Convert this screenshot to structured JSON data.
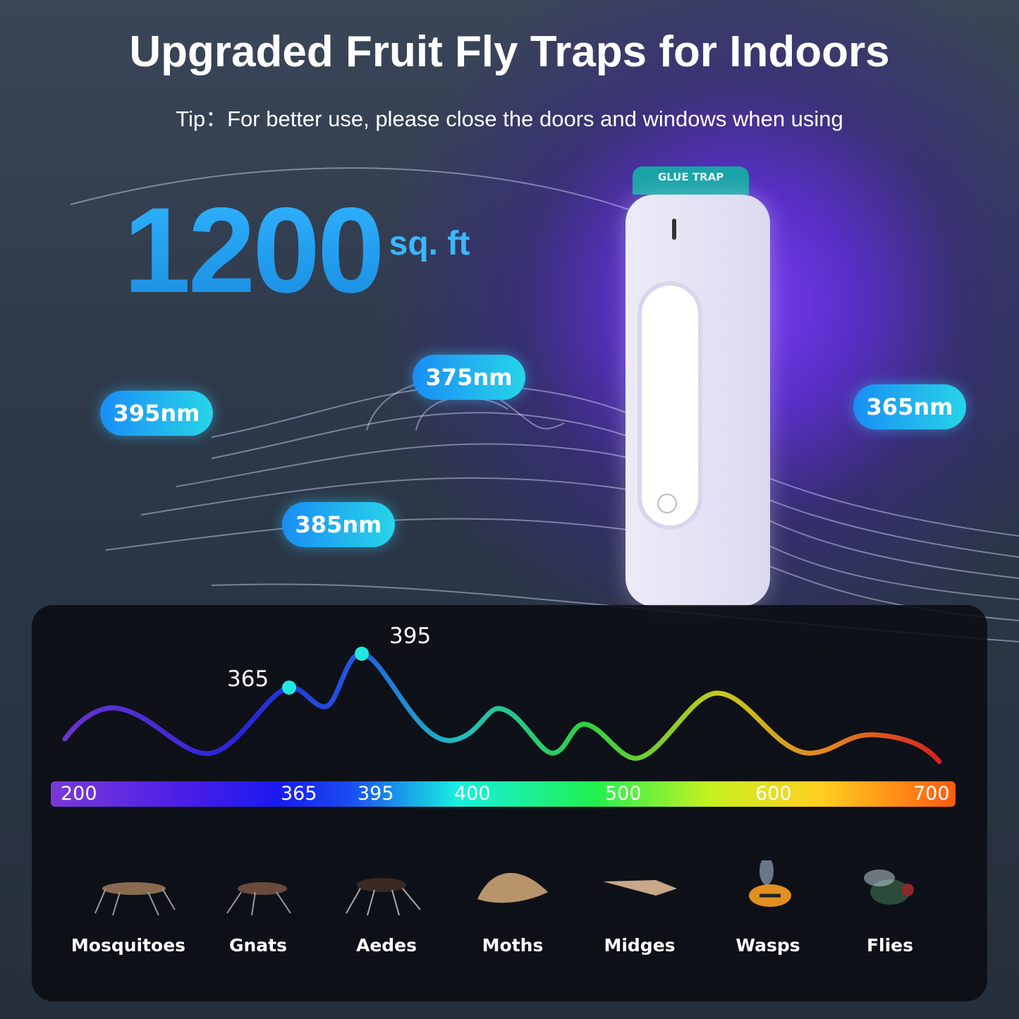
{
  "title": "Upgraded Fruit Fly Traps for Indoors",
  "tip": "Tip：For better use, please close the doors and windows when using",
  "coverage": {
    "value": "1200",
    "unit": "sq. ft"
  },
  "device_label": "GLUE TRAP",
  "wavelength_pills": [
    "375nm",
    "395nm",
    "365nm",
    "385nm"
  ],
  "spectrum": {
    "peak_labels": [
      "365",
      "395"
    ],
    "ticks": [
      "200",
      "365",
      "395",
      "400",
      "500",
      "600",
      "700"
    ]
  },
  "insects": [
    "Mosquitoes",
    "Gnats",
    "Aedes",
    "Moths",
    "Midges",
    "Wasps",
    "Flies"
  ],
  "colors": {
    "accent": "#27d5e8",
    "pill": "#1a8df5",
    "glow": "#7a3cf0"
  }
}
